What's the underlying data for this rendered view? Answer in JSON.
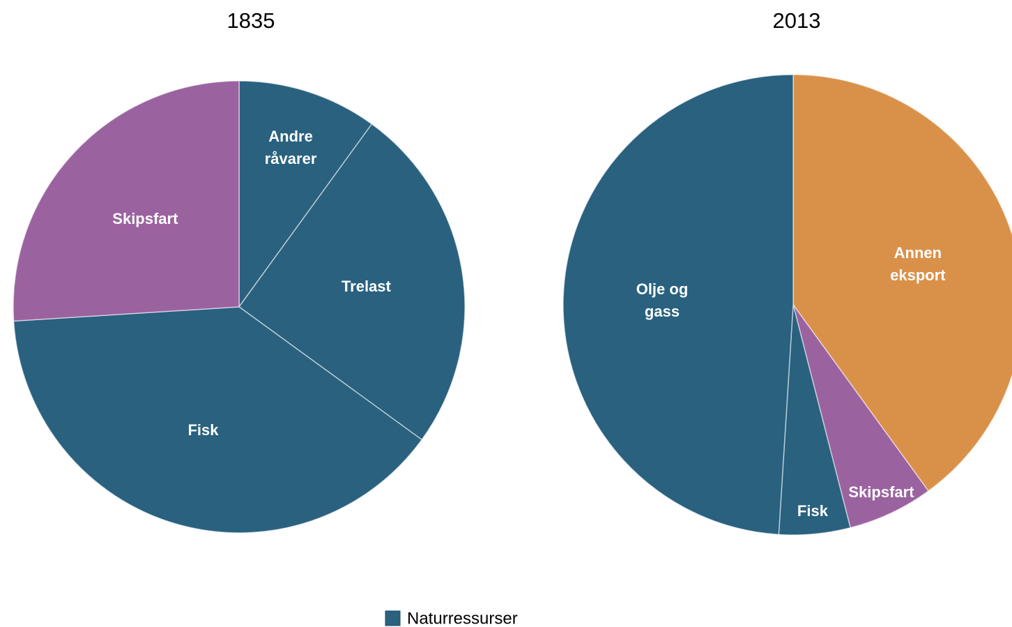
{
  "chart_data": [
    {
      "type": "pie",
      "title": "1835",
      "categories": [
        "Andre råvarer",
        "Trelast",
        "Fisk",
        "Skipsfart"
      ],
      "values": [
        10,
        25,
        39,
        26
      ],
      "colors": [
        "#29617f",
        "#29617f",
        "#29617f",
        "#9b62a0"
      ]
    },
    {
      "type": "pie",
      "title": "2013",
      "categories": [
        "Annen eksport",
        "Skipsfart",
        "Fisk",
        "Olje og gass"
      ],
      "values": [
        40,
        6,
        5,
        49
      ],
      "colors": [
        "#d9914a",
        "#9b62a0",
        "#29617f",
        "#29617f"
      ]
    }
  ],
  "legend": {
    "label": "Naturressurser",
    "color": "#29617f"
  }
}
